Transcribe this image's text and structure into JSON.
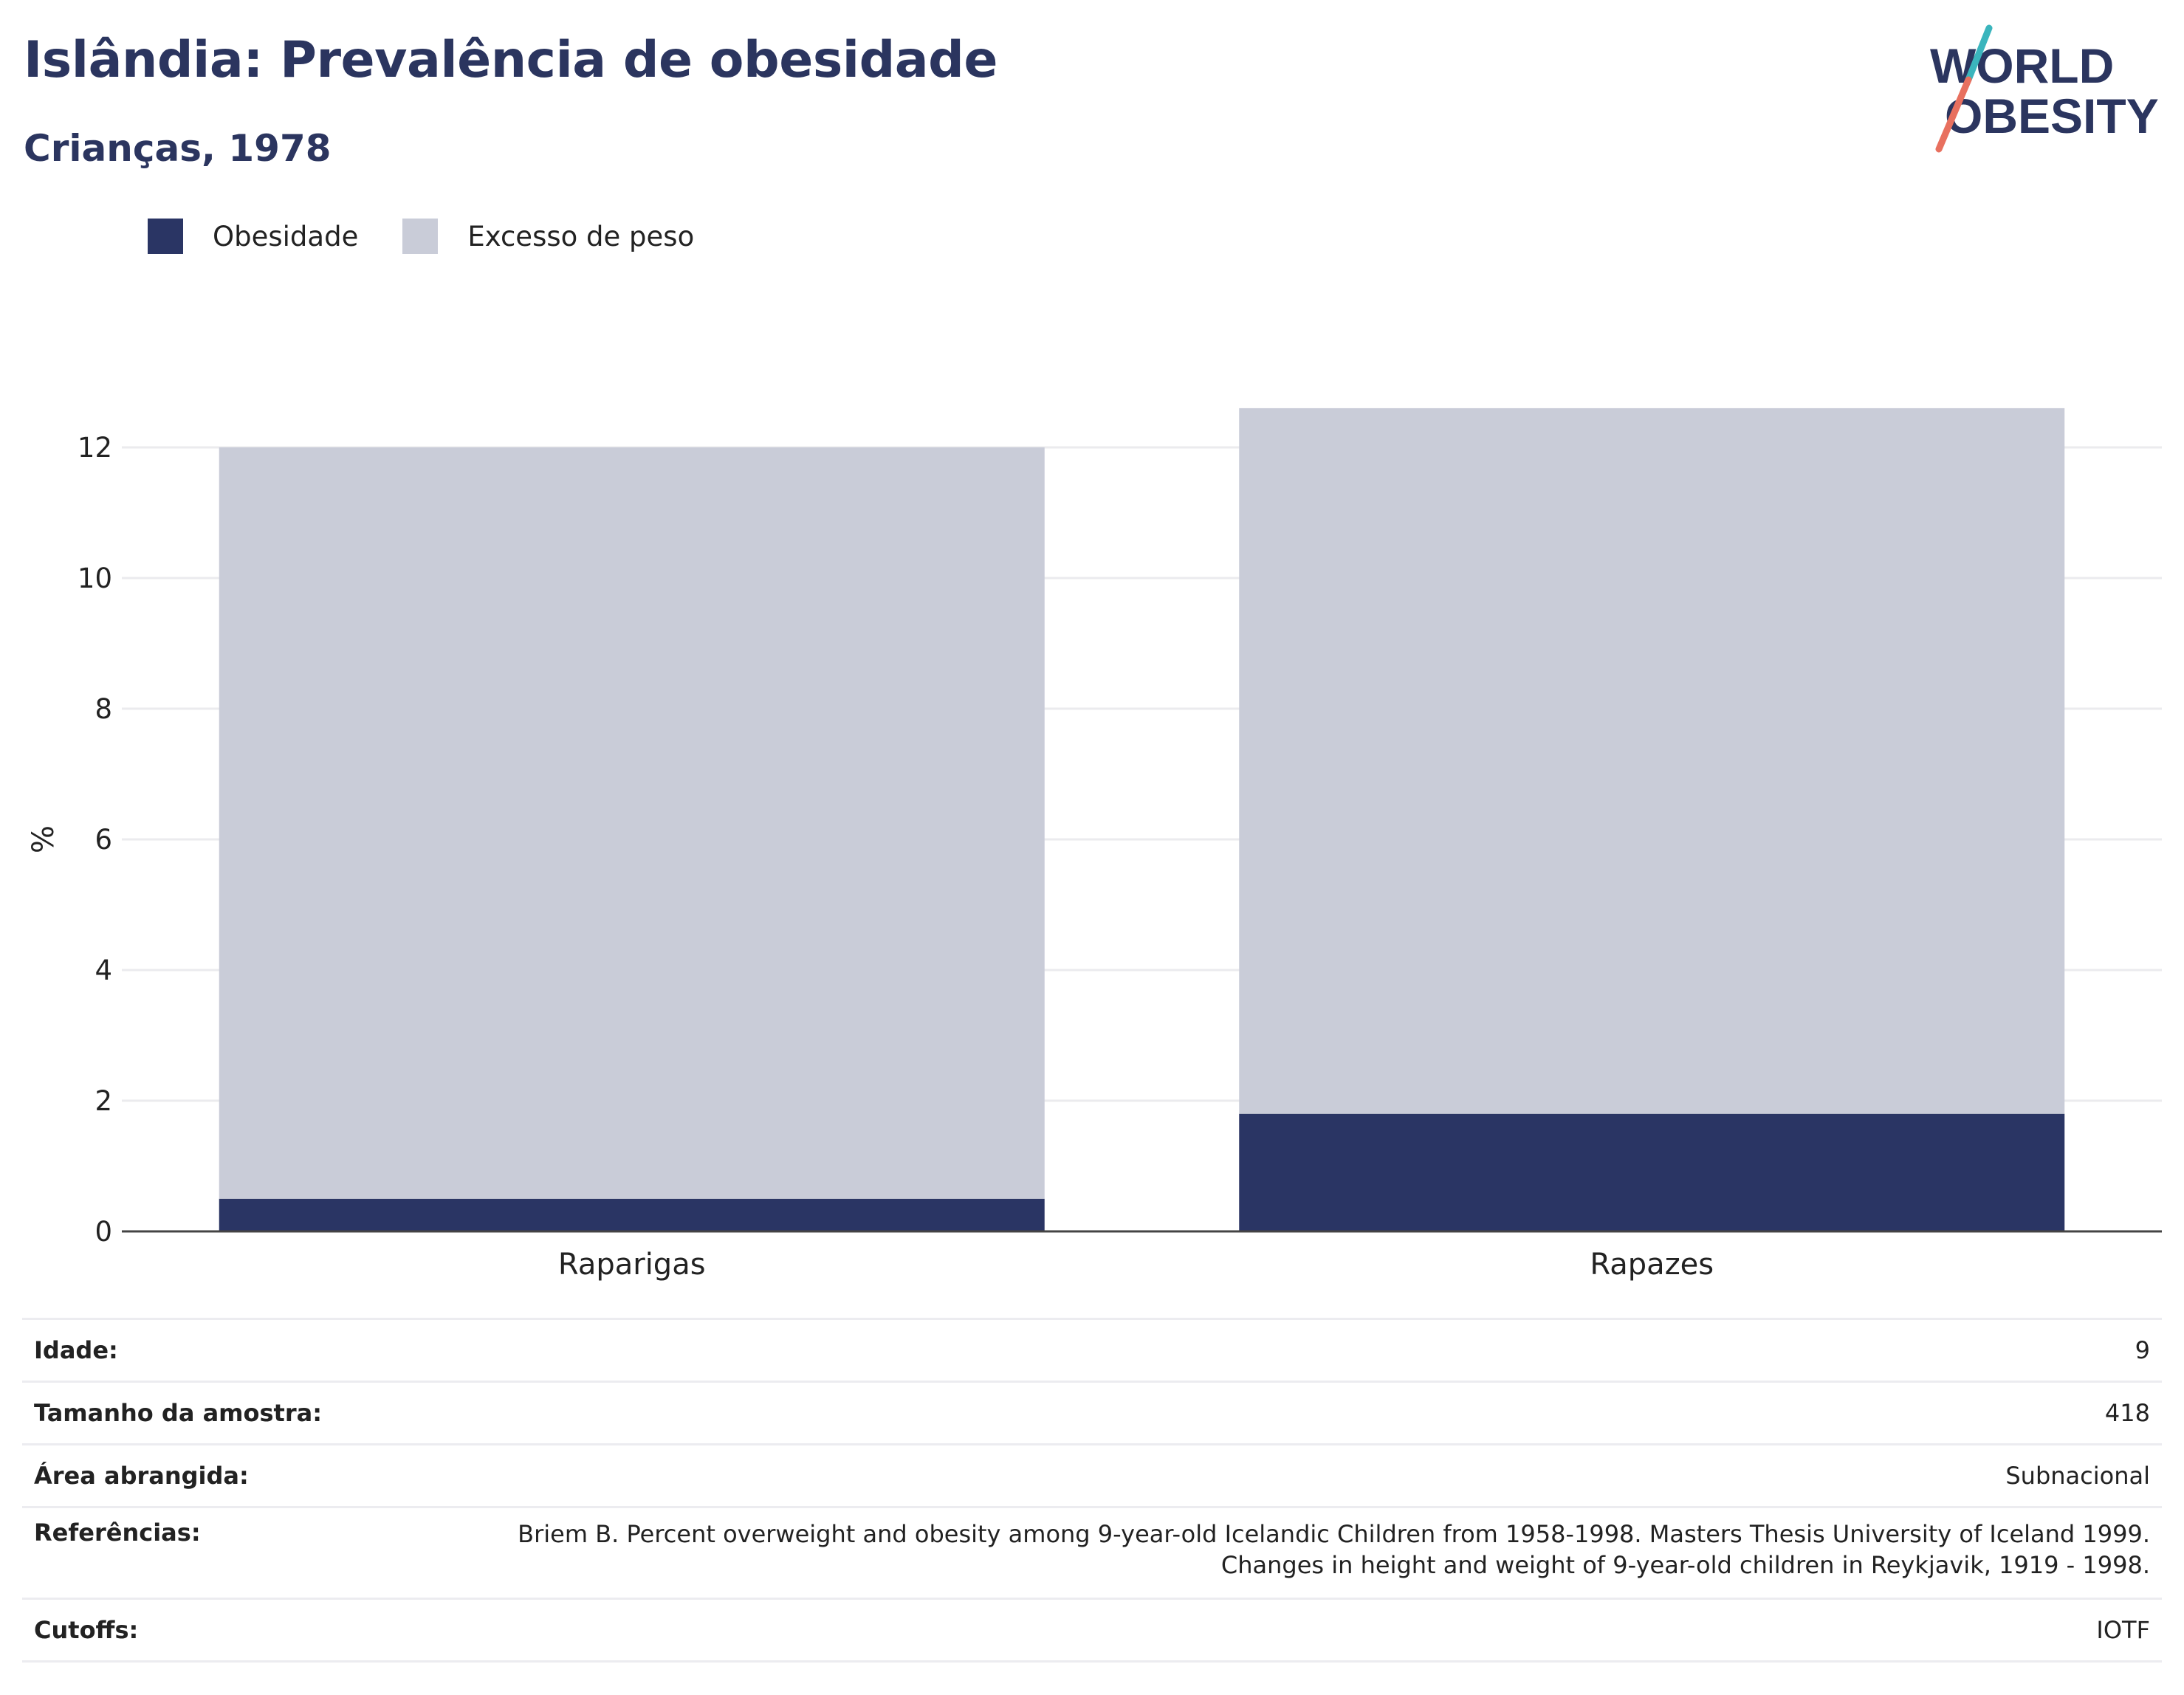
{
  "header": {
    "title": "Islândia: Prevalência de obesidade",
    "subtitle": "Crianças, 1978"
  },
  "logo": {
    "line1": "WORLD",
    "line2": "OBESITY"
  },
  "legend": [
    {
      "label": "Obesidade",
      "color": "#2a3564"
    },
    {
      "label": "Excesso de peso",
      "color": "#c9ccd8"
    }
  ],
  "chart_data": {
    "type": "bar",
    "stacked": true,
    "categories": [
      "Raparigas",
      "Rapazes"
    ],
    "series": [
      {
        "name": "Obesidade",
        "color": "#2a3564",
        "values": [
          0.5,
          1.8
        ]
      },
      {
        "name": "Excesso de peso",
        "color": "#c9ccd8",
        "values": [
          11.5,
          10.8
        ]
      }
    ],
    "ylabel": "%",
    "xlabel": "",
    "ylim": [
      0,
      12.6
    ],
    "yticks": [
      0,
      2,
      4,
      6,
      8,
      10,
      12
    ],
    "grid": true,
    "legend_position": "top-left"
  },
  "info": {
    "rows": [
      {
        "label": "Idade:",
        "value": "9"
      },
      {
        "label": "Tamanho da amostra:",
        "value": "418"
      },
      {
        "label": "Área abrangida:",
        "value": "Subnacional"
      },
      {
        "label": "Referências:",
        "value": "Briem B. Percent overweight and obesity among 9-year-old Icelandic Children from 1958-1998. Masters Thesis University of Iceland 1999. Changes in height and weight of 9-year-old children in Reykjavik, 1919 - 1998."
      },
      {
        "label": "Cutoffs:",
        "value": "IOTF"
      }
    ]
  }
}
